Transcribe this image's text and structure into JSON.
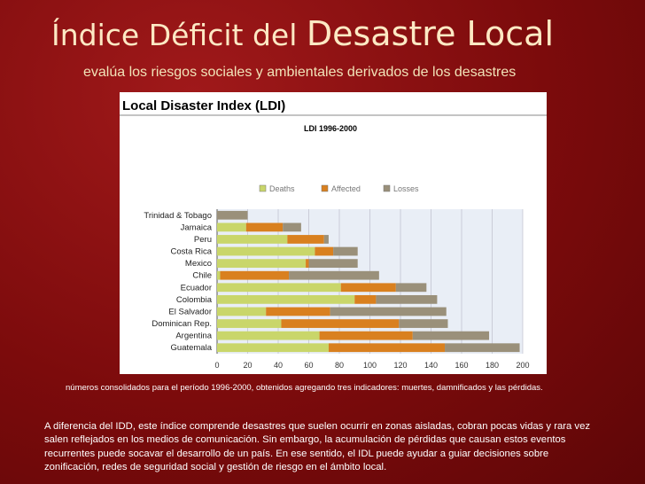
{
  "slide": {
    "title_part1": "Índice Déficit del ",
    "title_part2": "Desastre Local",
    "subtitle": "evalúa los riesgos sociales y ambientales derivados de los desastres",
    "footnote": "números consolidados para el período 1996-2000, obtenidos agregando tres indicadores: muertes, damnificados y las pérdidas.",
    "paragraph": "A diferencia del IDD, este índice comprende desastres que suelen ocurrir en zonas aisladas, cobran pocas vidas y rara vez salen reflejados en los medios de comunicación. Sin embargo, la acumulación de pérdidas que causan estos eventos recurrentes puede socavar el desarrollo de un país. En ese sentido, el IDL puede ayudar a guiar decisiones sobre zonificación, redes de seguridad social y gestión de riesgo en el ámbito local."
  },
  "chart_data": {
    "type": "bar",
    "orientation": "horizontal",
    "stacked": true,
    "title": "Local Disaster Index (LDI)",
    "subtitle": "LDI 1996-2000",
    "categories": [
      "Trinidad & Tobago",
      "Jamaica",
      "Peru",
      "Costa Rica",
      "Mexico",
      "Chile",
      "Ecuador",
      "Colombia",
      "El Salvador",
      "Dominican Rep.",
      "Argentina",
      "Guatemala"
    ],
    "series": [
      {
        "name": "Deaths",
        "color": "#c9d66a",
        "values": [
          0,
          19,
          46,
          64,
          58,
          2,
          81,
          90,
          32,
          42,
          67,
          73
        ]
      },
      {
        "name": "Affected",
        "color": "#d9801f",
        "values": [
          0,
          24,
          24,
          12,
          2,
          45,
          36,
          14,
          42,
          77,
          61,
          76
        ]
      },
      {
        "name": "Losses",
        "color": "#9a907a",
        "values": [
          20,
          12,
          3,
          16,
          32,
          59,
          20,
          40,
          76,
          32,
          50,
          49
        ]
      }
    ],
    "xlim": [
      0,
      200
    ],
    "xticks": [
      "0",
      "20",
      "40",
      "60",
      "80",
      "100",
      "120",
      "140",
      "160",
      "180",
      "200"
    ],
    "grid": true,
    "legend": "top-right"
  }
}
